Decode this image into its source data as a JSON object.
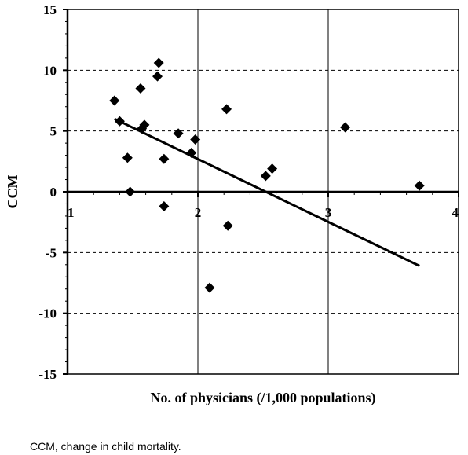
{
  "chart_data": {
    "type": "scatter",
    "xlabel": "No. of physicians (/1,000 populations)",
    "ylabel": "CCM",
    "xlim": [
      1,
      4
    ],
    "ylim": [
      -15,
      15
    ],
    "x_ticks": [
      "1",
      "2",
      "3",
      "4"
    ],
    "y_ticks": [
      "15",
      "10",
      "5",
      "0",
      "-5",
      "-10",
      "-15"
    ],
    "grid": true,
    "legend": "none",
    "point_color": "#000000",
    "points": [
      {
        "x": 1.36,
        "y": 7.5
      },
      {
        "x": 1.4,
        "y": 5.8
      },
      {
        "x": 1.46,
        "y": 2.8
      },
      {
        "x": 1.48,
        "y": 0.0
      },
      {
        "x": 1.56,
        "y": 8.5
      },
      {
        "x": 1.57,
        "y": 5.2
      },
      {
        "x": 1.59,
        "y": 5.5
      },
      {
        "x": 1.69,
        "y": 9.5
      },
      {
        "x": 1.7,
        "y": 10.6
      },
      {
        "x": 1.74,
        "y": 2.7
      },
      {
        "x": 1.74,
        "y": -1.2
      },
      {
        "x": 1.85,
        "y": 4.8
      },
      {
        "x": 1.95,
        "y": 3.2
      },
      {
        "x": 1.98,
        "y": 4.3
      },
      {
        "x": 2.09,
        "y": -7.9
      },
      {
        "x": 2.22,
        "y": 6.8
      },
      {
        "x": 2.23,
        "y": -2.8
      },
      {
        "x": 2.52,
        "y": 1.3
      },
      {
        "x": 2.57,
        "y": 1.9
      },
      {
        "x": 3.13,
        "y": 5.3
      },
      {
        "x": 3.7,
        "y": 0.5
      }
    ],
    "trendline": {
      "x": [
        1.36,
        3.7
      ],
      "y": [
        6.0,
        -6.1
      ]
    }
  },
  "caption": "CCM, change in child mortality."
}
